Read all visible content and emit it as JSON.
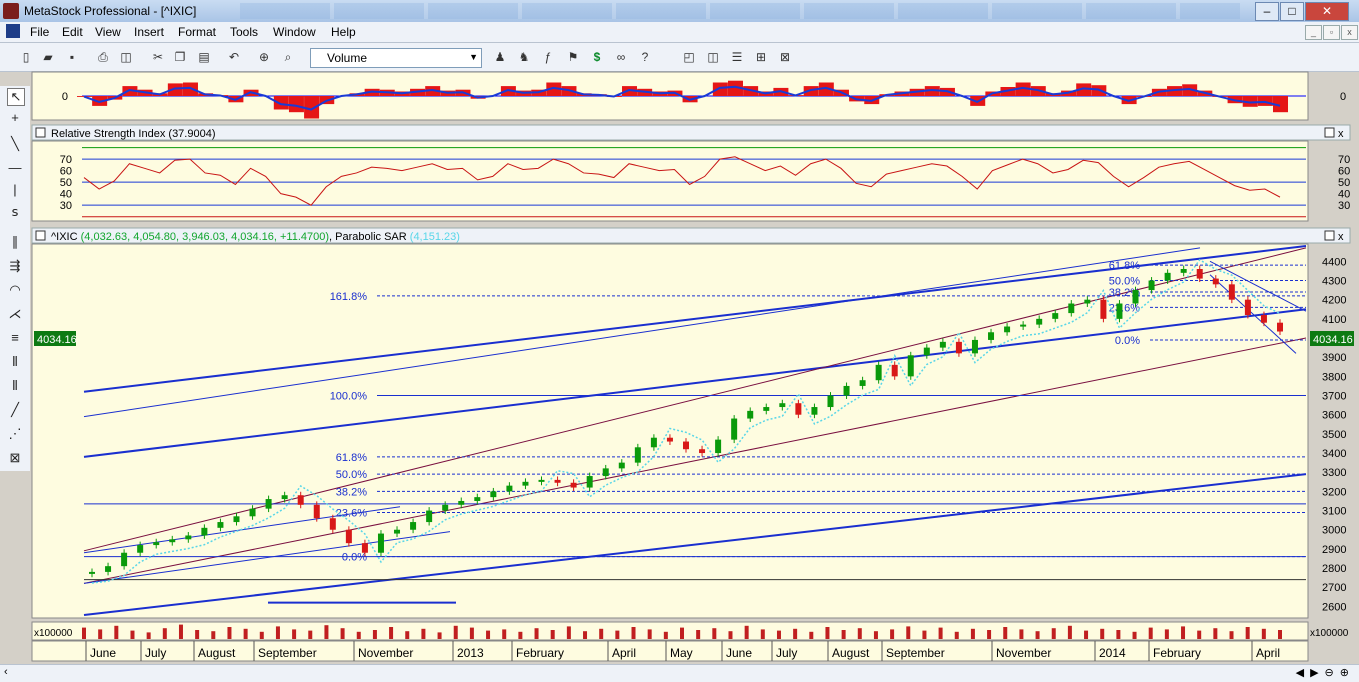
{
  "window": {
    "title": "MetaStock Professional - [^IXIC]",
    "buttons": [
      "–",
      "□",
      "✕"
    ]
  },
  "menu": {
    "items": [
      "File",
      "Edit",
      "View",
      "Insert",
      "Format",
      "Tools",
      "Window",
      "Help"
    ]
  },
  "toolbar": {
    "indicator_selected": "Volume"
  },
  "chart_data": [
    {
      "type": "area",
      "title": "",
      "ylabel_left": "0",
      "ylabel_right": "0",
      "note": "oscillator histogram (red) with blue and dotted signal lines"
    },
    {
      "type": "line",
      "title": "Relative Strength Index (37.9004)",
      "yticks": [
        70,
        60,
        50,
        40,
        30
      ],
      "reference_lines": [
        80,
        70,
        50,
        30,
        20
      ],
      "last_value": 37.9004,
      "series": [
        {
          "values": [
            54,
            44,
            51,
            66,
            62,
            58,
            69,
            70,
            58,
            56,
            48,
            62,
            55,
            40,
            37,
            30,
            46,
            55,
            58,
            63,
            62,
            60,
            63,
            66,
            61,
            62,
            52,
            55,
            66,
            61,
            62,
            70,
            66,
            58,
            57,
            54,
            66,
            63,
            60,
            61,
            48,
            55,
            70,
            72,
            66,
            60,
            64,
            56,
            66,
            70,
            62,
            49,
            46,
            57,
            60,
            63,
            66,
            64,
            55,
            44,
            60,
            65,
            70,
            66,
            58,
            61,
            69,
            67,
            55,
            46,
            54,
            63,
            66,
            68,
            61,
            54,
            47,
            43,
            44,
            37
          ]
        }
      ]
    },
    {
      "type": "line",
      "title": "^IXIC",
      "ohlc_label": "(4,032.63, 4,054.80, 3,946.03, 4,034.16, +11.4700)",
      "indicator_label": "Parabolic SAR",
      "indicator_value": "(4,151.23)",
      "last_price": "4034.16",
      "yticks": [
        4400,
        4300,
        4200,
        4100,
        4000,
        3900,
        3800,
        3700,
        3600,
        3500,
        3400,
        3300,
        3200,
        3100,
        3000,
        2900,
        2800,
        2700,
        2600
      ],
      "ylim": [
        2550,
        4480
      ],
      "x_tick_labels": [
        "June",
        "July",
        "August",
        "September",
        "November",
        "2013",
        "February",
        "April",
        "May",
        "June",
        "July",
        "August",
        "September",
        "November",
        "2014",
        "February",
        "April"
      ],
      "series": [
        {
          "name": "^IXIC",
          "values": [
            2780,
            2810,
            2880,
            2920,
            2935,
            2950,
            2970,
            3010,
            3040,
            3070,
            3110,
            3160,
            3180,
            3130,
            3060,
            3000,
            2930,
            2880,
            2980,
            3000,
            3040,
            3100,
            3130,
            3150,
            3170,
            3200,
            3230,
            3250,
            3260,
            3245,
            3220,
            3280,
            3320,
            3350,
            3430,
            3480,
            3460,
            3420,
            3400,
            3470,
            3580,
            3620,
            3640,
            3660,
            3600,
            3640,
            3700,
            3750,
            3780,
            3860,
            3800,
            3910,
            3950,
            3980,
            3920,
            3990,
            4030,
            4060,
            4070,
            4100,
            4130,
            4180,
            4200,
            4100,
            4180,
            4250,
            4300,
            4340,
            4360,
            4310,
            4280,
            4200,
            4120,
            4080,
            4034
          ]
        }
      ],
      "fibonacci_left": [
        "161.8%",
        "100.0%",
        "61.8%",
        "50.0%",
        "38.2%",
        "23.6%",
        "0.0%"
      ],
      "fibonacci_right": [
        "61.8%",
        "50.0%",
        "38.2%",
        "23.6%",
        "0.0%"
      ]
    },
    {
      "type": "bar",
      "title": "",
      "ylabel_left": "x100000",
      "ylabel_right": "x100000",
      "values": [
        19,
        16,
        22,
        14,
        11,
        18,
        24,
        15,
        13,
        20,
        17,
        12,
        21,
        16,
        14,
        23,
        18,
        12,
        15,
        20,
        13,
        17,
        11,
        22,
        19,
        14,
        16,
        12,
        18,
        15,
        21,
        13,
        17,
        14,
        20,
        16,
        12,
        19,
        15,
        18,
        13,
        22,
        16,
        14,
        17,
        12,
        20,
        15,
        18,
        13,
        16,
        21,
        14,
        19,
        12,
        17,
        15,
        20,
        16,
        13,
        18,
        22,
        14,
        17,
        15,
        12,
        19,
        16,
        21,
        14,
        18,
        13,
        20,
        17,
        15
      ]
    }
  ]
}
